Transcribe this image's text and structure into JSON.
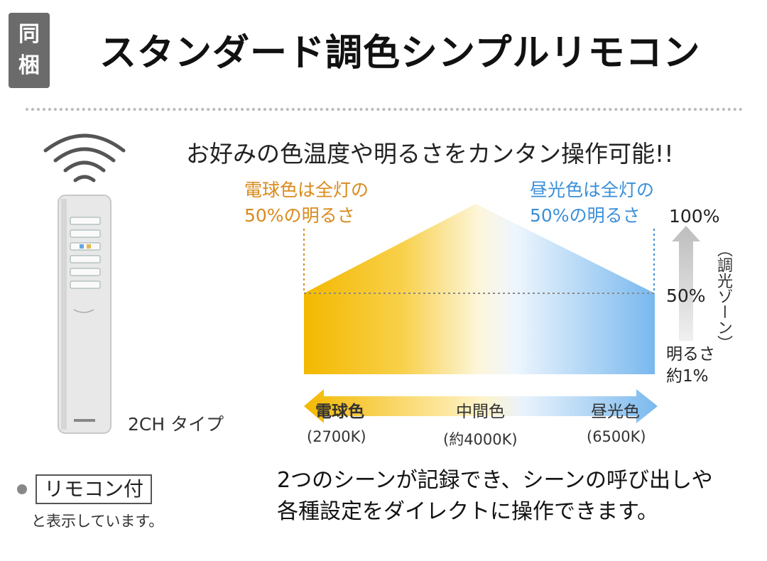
{
  "badge": [
    "同",
    "梱"
  ],
  "title": "スタンダード調色シンプルリモコン",
  "subtitle": "お好みの色温度や明るさをカンタン操作可能!!",
  "warm_label": [
    "電球色は全灯の",
    "50%の明るさ"
  ],
  "cool_label": [
    "昼光色は全灯の",
    "50%の明るさ"
  ],
  "levels": {
    "max": "100%",
    "mid": "50%"
  },
  "zone_label": "（調光ゾーン）",
  "brightness_min": [
    "明るさ",
    "約1%"
  ],
  "color_axis": {
    "warm": {
      "name": "電球色",
      "kelvin": "(2700K)"
    },
    "mid": {
      "name": "中間色",
      "kelvin": "(約4000K)"
    },
    "cool": {
      "name": "昼光色",
      "kelvin": "(6500K)"
    }
  },
  "remote_type": "2CH タイプ",
  "remote_tag": "リモコン付",
  "remote_note": "と表示しています。",
  "description": [
    "2つのシーンが記録でき、シーンの呼び出しや",
    "各種設定をダイレクトに操作できます。"
  ],
  "colors": {
    "warm": "#f5c21a",
    "cool": "#6fb3ec",
    "text_warm": "#d98a1c",
    "text_cool": "#3a8fd8"
  }
}
